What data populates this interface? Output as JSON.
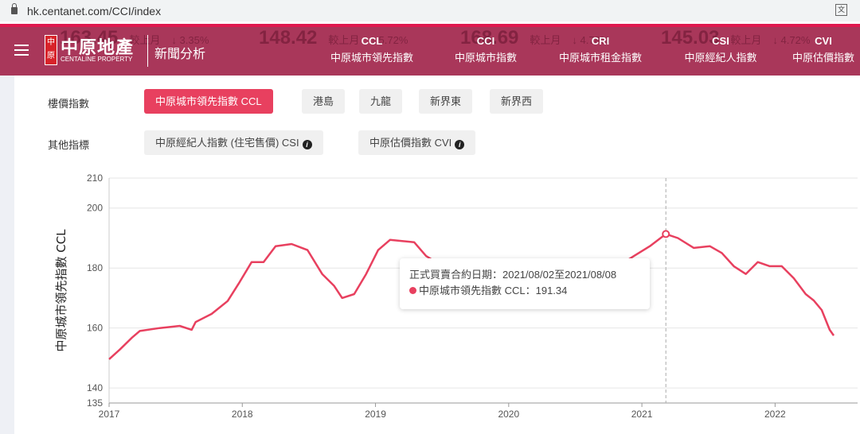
{
  "browser": {
    "url": "hk.centanet.com/CCI/index"
  },
  "header": {
    "logo_seal": "中原",
    "logo_cn": "中原地產",
    "logo_en": "CENTALINE PROPERTY",
    "section": "新聞分析",
    "ticker": [
      {
        "value": "163.45",
        "label": "較上月",
        "change": "↓ 3.35%"
      },
      {
        "value": "148.42",
        "label": "較上月",
        "change": "↓ 5.72%"
      },
      {
        "value": "168.69",
        "label": "較上月",
        "change": "↓ 4.78%"
      },
      {
        "value": "145.03",
        "label": "較上月",
        "change": "↓ 4.72%"
      }
    ],
    "indices": [
      {
        "code": "CCL",
        "name": "中原城市領先指數"
      },
      {
        "code": "CCI",
        "name": "中原城市指數"
      },
      {
        "code": "CRI",
        "name": "中原城市租金指數"
      },
      {
        "code": "CSI",
        "name": "中原經紀人指數"
      },
      {
        "code": "CVI",
        "name": "中原估價指數"
      }
    ]
  },
  "filters": {
    "price_label": "樓價指數",
    "price_options": [
      "中原城市領先指數 CCL",
      "港島",
      "九龍",
      "新界東",
      "新界西"
    ],
    "other_label": "其他指標",
    "other_options": [
      "中原經紀人指數 (住宅售價) CSI",
      "中原估價指數 CVI"
    ]
  },
  "tooltip": {
    "date_line": "正式買賣合約日期：2021/08/02至2021/08/08",
    "value_line": "中原城市領先指數 CCL：191.34"
  },
  "chart_data": {
    "type": "line",
    "title": "",
    "xlabel": "",
    "ylabel": "中原城市領先指數 CCL",
    "ylim": [
      135,
      210
    ],
    "yticks": [
      135,
      140,
      160,
      180,
      200,
      210
    ],
    "xlim": [
      2017,
      2022.5
    ],
    "xticks": [
      2017,
      2018,
      2019,
      2020,
      2021,
      2022
    ],
    "grid": "horizontal",
    "color": "#e8405f",
    "highlight_x": 2021.18,
    "series": [
      {
        "name": "中原城市領先指數 CCL",
        "x": [
          2017.0,
          2017.08,
          2017.17,
          2017.23,
          2017.38,
          2017.53,
          2017.62,
          2017.65,
          2017.77,
          2017.89,
          2017.98,
          2018.07,
          2018.16,
          2018.25,
          2018.37,
          2018.49,
          2018.6,
          2018.69,
          2018.75,
          2018.84,
          2018.93,
          2019.02,
          2019.11,
          2019.2,
          2019.29,
          2019.38,
          2019.6,
          2019.9,
          2020.2,
          2020.5,
          2020.8,
          2020.94,
          2021.06,
          2021.18,
          2021.27,
          2021.39,
          2021.51,
          2021.6,
          2021.69,
          2021.78,
          2021.87,
          2021.96,
          2022.05,
          2022.14,
          2022.23,
          2022.29,
          2022.35,
          2022.41,
          2022.44
        ],
        "y": [
          149.6,
          152.8,
          156.7,
          159,
          160,
          160.7,
          159.4,
          162,
          164.7,
          169,
          175.3,
          182,
          182,
          187.3,
          188,
          186,
          178,
          174,
          170,
          171.3,
          178,
          186,
          189.4,
          189,
          188.6,
          184,
          178,
          176,
          177,
          176,
          180,
          184,
          187.3,
          191.34,
          190,
          186.7,
          187.3,
          185,
          180.6,
          178,
          182,
          180.6,
          180.6,
          176.6,
          171.3,
          169.2,
          166,
          159.4,
          157.5
        ]
      }
    ]
  }
}
